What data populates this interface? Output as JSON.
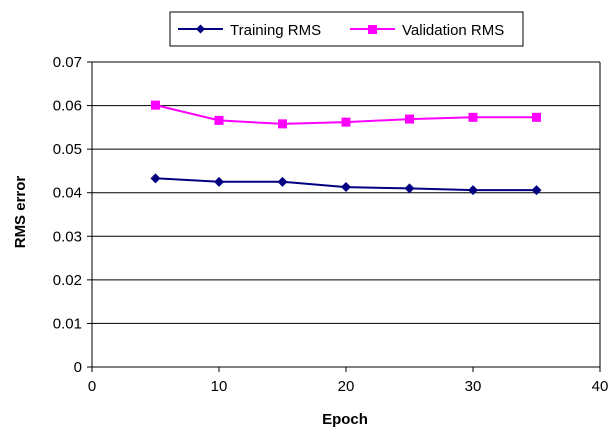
{
  "chart_data": {
    "type": "line",
    "title": "",
    "xlabel": "Epoch",
    "ylabel": "RMS error",
    "xlim": [
      0,
      40
    ],
    "ylim": [
      0,
      0.07
    ],
    "xticks": [
      "0",
      "10",
      "20",
      "30",
      "40"
    ],
    "yticks": [
      "0",
      "0.01",
      "0.02",
      "0.03",
      "0.04",
      "0.05",
      "0.06",
      "0.07"
    ],
    "grid": "horizontal",
    "legend_position": "top",
    "series": [
      {
        "name": "Training RMS",
        "color": "#000080",
        "marker": "diamond",
        "x": [
          5,
          10,
          15,
          20,
          25,
          30,
          35
        ],
        "y": [
          0.0433,
          0.0425,
          0.0425,
          0.0413,
          0.041,
          0.0406,
          0.0406
        ]
      },
      {
        "name": "Validation RMS",
        "color": "#ff00ff",
        "marker": "square",
        "x": [
          5,
          10,
          15,
          20,
          25,
          30,
          35
        ],
        "y": [
          0.0601,
          0.0566,
          0.0558,
          0.0562,
          0.0569,
          0.0573,
          0.0573
        ]
      }
    ]
  }
}
